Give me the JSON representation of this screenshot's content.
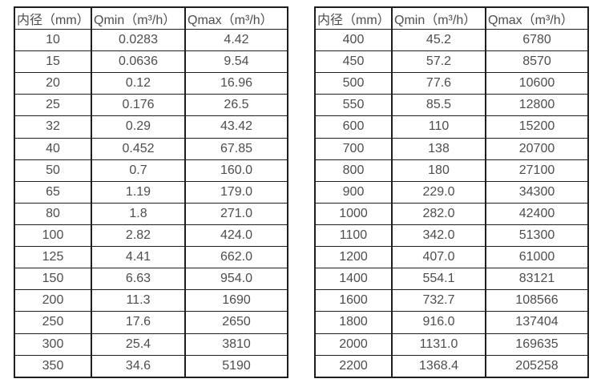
{
  "colors": {
    "background": "#ffffff",
    "border": "#1f1f1f",
    "text": "#4d4d4d"
  },
  "tables": [
    {
      "name": "diameter-flow-table-left",
      "headers": [
        "内径（mm）",
        "Qmin（m³/h）",
        "Qmax（m³/h）"
      ],
      "rows": [
        [
          "10",
          "0.0283",
          "4.42"
        ],
        [
          "15",
          "0.0636",
          "9.54"
        ],
        [
          "20",
          "0.12",
          "16.96"
        ],
        [
          "25",
          "0.176",
          "26.5"
        ],
        [
          "32",
          "0.29",
          "43.42"
        ],
        [
          "40",
          "0.452",
          "67.85"
        ],
        [
          "50",
          "0.7",
          "160.0"
        ],
        [
          "65",
          "1.19",
          "179.0"
        ],
        [
          "80",
          "1.8",
          "271.0"
        ],
        [
          "100",
          "2.82",
          "424.0"
        ],
        [
          "125",
          "4.41",
          "662.0"
        ],
        [
          "150",
          "6.63",
          "954.0"
        ],
        [
          "200",
          "11.3",
          "1690"
        ],
        [
          "250",
          "17.6",
          "2650"
        ],
        [
          "300",
          "25.4",
          "3810"
        ],
        [
          "350",
          "34.6",
          "5190"
        ]
      ]
    },
    {
      "name": "diameter-flow-table-right",
      "headers": [
        "内径（mm）",
        "Qmin（m³/h）",
        "Qmax（m³/h）"
      ],
      "rows": [
        [
          "400",
          "45.2",
          "6780"
        ],
        [
          "450",
          "57.2",
          "8570"
        ],
        [
          "500",
          "77.6",
          "10600"
        ],
        [
          "550",
          "85.5",
          "12800"
        ],
        [
          "600",
          "110",
          "15200"
        ],
        [
          "700",
          "138",
          "20700"
        ],
        [
          "800",
          "180",
          "27100"
        ],
        [
          "900",
          "229.0",
          "34300"
        ],
        [
          "1000",
          "282.0",
          "42400"
        ],
        [
          "1100",
          "342.0",
          "51300"
        ],
        [
          "1200",
          "407.0",
          "61000"
        ],
        [
          "1400",
          "554.1",
          "83121"
        ],
        [
          "1600",
          "732.7",
          "108566"
        ],
        [
          "1800",
          "916.0",
          "137404"
        ],
        [
          "2000",
          "1131.0",
          "169635"
        ],
        [
          "2200",
          "1368.4",
          "205258"
        ]
      ]
    }
  ]
}
